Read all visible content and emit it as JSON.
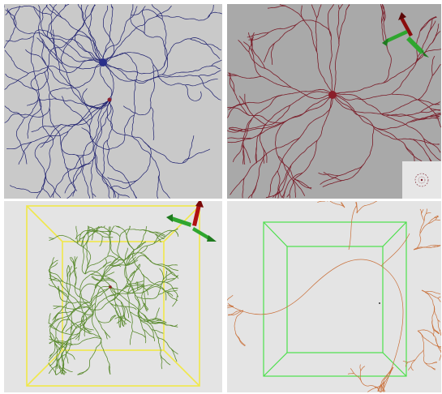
{
  "panels": [
    {
      "id": "p1",
      "background": "#c9c9c9",
      "neuron_color": "#1d1f6e",
      "soma_color": "#2a2f8a",
      "bounding_box": false,
      "axes_gizmo": false
    },
    {
      "id": "p2",
      "background": "#a9a9a9",
      "neuron_color": "#7a1c28",
      "soma_color": "#8a1f2a",
      "bounding_box": false,
      "axes_gizmo": true,
      "thumbnail_inset": true
    },
    {
      "id": "p3",
      "background": "#e4e4e4",
      "neuron_color": "#5a8a2e",
      "box_color": "#f0e84a",
      "bounding_box": true,
      "axes_gizmo": true
    },
    {
      "id": "p4",
      "background": "#e4e4e4",
      "neuron_color": "#c9703a",
      "box_color": "#4be04b",
      "bounding_box": true,
      "axes_gizmo": false
    }
  ],
  "gizmo_colors": {
    "x": "#8b0d0d",
    "y": "#2fa62f"
  }
}
